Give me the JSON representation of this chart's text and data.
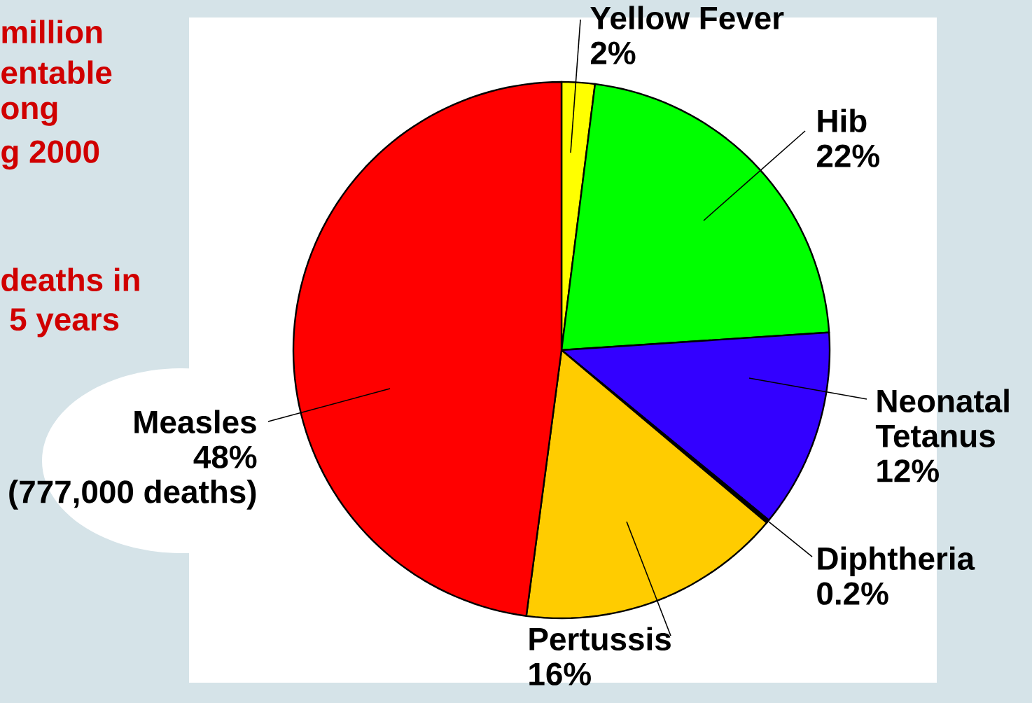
{
  "chart_data": {
    "type": "pie",
    "categories": [
      "Yellow Fever",
      "Hib",
      "Neonatal Tetanus",
      "Diphtheria",
      "Pertussis",
      "Measles"
    ],
    "values": [
      2,
      22,
      12,
      0.2,
      16,
      48
    ],
    "value_labels": [
      "2%",
      "22%",
      "12%",
      "0.2%",
      "16%",
      "48%"
    ],
    "colors": [
      "#ffff00",
      "#00ff00",
      "#3300ff",
      "#000000",
      "#ffcc00",
      "#ff0000"
    ],
    "annotations": [
      "(777,000 deaths)",
      "million",
      "entable",
      "ong",
      "g 2000",
      "deaths in",
      " 5 years"
    ]
  }
}
